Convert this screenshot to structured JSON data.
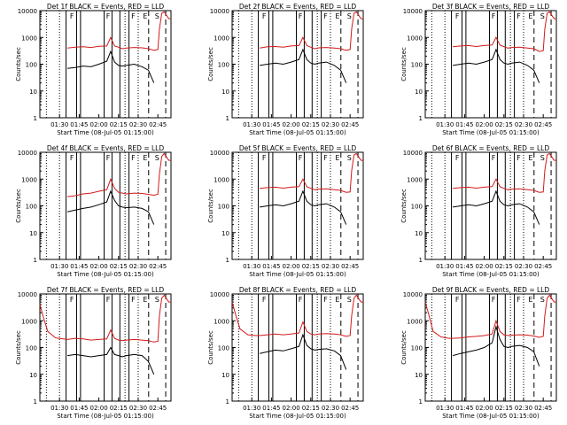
{
  "figure": {
    "background": "#ffffff",
    "colors": {
      "events": "#000000",
      "lld": "#d11a1a",
      "axis": "#000000"
    },
    "xtick_labels": [
      "01:30",
      "01:45",
      "02:00",
      "02:15",
      "02:30",
      "02:45"
    ],
    "ytick_labels": [
      "1",
      "10",
      "100",
      "1000",
      "10000"
    ],
    "ylabel": "Counts/sec",
    "xlabel": "Start Time (08-Jul-05 01:15:00)",
    "markers": {
      "dotted": [
        1.333,
        1.5,
        2.333,
        2.5
      ],
      "solid": [
        1.583,
        1.717,
        1.767,
        2.067,
        2.167,
        2.267,
        2.383
      ],
      "dashed": [
        2.633,
        2.85
      ]
    },
    "saa_letters": [
      {
        "text": "F",
        "t": 1.62
      },
      {
        "text": "F",
        "t": 2.08
      },
      {
        "text": "F",
        "t": 2.4
      },
      {
        "text": "E",
        "t": 2.55
      },
      {
        "text": "S",
        "t": 2.7
      }
    ]
  },
  "chart_data": [
    {
      "type": "line",
      "title": "Det 1f BLACK = Events, RED = LLD",
      "xlabel": "Start Time (08-Jul-05 01:15:00)",
      "ylabel": "Counts/sec",
      "x_unit": "hours after 01:15:00",
      "xlim": [
        0,
        1.667
      ],
      "ylim": [
        1,
        10000
      ],
      "yscale": "log",
      "series": [
        {
          "x": [
            0.35,
            0.45,
            0.55,
            0.65,
            0.75,
            0.85,
            0.9,
            0.95,
            1.0,
            1.05,
            1.1,
            1.2,
            1.3,
            1.38,
            1.45,
            1.5,
            1.52,
            1.55,
            1.58,
            1.62,
            1.64,
            1.667
          ],
          "y": [
            400,
            430,
            450,
            420,
            470,
            480,
            1000,
            480,
            430,
            380,
            400,
            420,
            410,
            380,
            330,
            350,
            2000,
            8000,
            9000,
            6000,
            5000,
            5000
          ]
        },
        {
          "x": [
            0.35,
            0.45,
            0.55,
            0.65,
            0.75,
            0.85,
            0.9,
            0.95,
            1.0,
            1.05,
            1.1,
            1.2,
            1.3,
            1.38,
            1.45
          ],
          "y": [
            70,
            75,
            85,
            80,
            100,
            130,
            300,
            120,
            90,
            85,
            90,
            100,
            80,
            60,
            20
          ]
        }
      ]
    },
    {
      "type": "line",
      "title": "Det 2f BLACK = Events, RED = LLD",
      "xlabel": "Start Time (08-Jul-05 01:15:00)",
      "ylabel": "Counts/sec",
      "x_unit": "hours after 01:15:00",
      "xlim": [
        0,
        1.667
      ],
      "ylim": [
        1,
        10000
      ],
      "yscale": "log",
      "series": [
        {
          "x": [
            0.35,
            0.45,
            0.55,
            0.65,
            0.75,
            0.85,
            0.9,
            0.95,
            1.0,
            1.05,
            1.1,
            1.2,
            1.3,
            1.38,
            1.45,
            1.5,
            1.52,
            1.55,
            1.58,
            1.62,
            1.64,
            1.667
          ],
          "y": [
            400,
            450,
            460,
            430,
            480,
            500,
            1000,
            500,
            430,
            380,
            410,
            420,
            400,
            380,
            330,
            350,
            2000,
            8000,
            9000,
            6000,
            5000,
            5000
          ]
        },
        {
          "x": [
            0.35,
            0.45,
            0.55,
            0.65,
            0.75,
            0.85,
            0.9,
            0.95,
            1.0,
            1.05,
            1.1,
            1.2,
            1.3,
            1.38,
            1.45
          ],
          "y": [
            90,
            100,
            110,
            100,
            120,
            150,
            350,
            150,
            110,
            100,
            110,
            120,
            90,
            60,
            20
          ]
        }
      ]
    },
    {
      "type": "line",
      "title": "Det 3f BLACK = Events, RED = LLD",
      "xlabel": "Start Time (08-Jul-05 01:15:00)",
      "ylabel": "Counts/sec",
      "x_unit": "hours after 01:15:00",
      "xlim": [
        0,
        1.667
      ],
      "ylim": [
        1,
        10000
      ],
      "yscale": "log",
      "series": [
        {
          "x": [
            0.35,
            0.45,
            0.55,
            0.65,
            0.75,
            0.85,
            0.9,
            0.95,
            1.0,
            1.05,
            1.1,
            1.2,
            1.3,
            1.38,
            1.45,
            1.5,
            1.52,
            1.55,
            1.58,
            1.62,
            1.64,
            1.667
          ],
          "y": [
            450,
            480,
            500,
            460,
            500,
            520,
            1000,
            520,
            450,
            400,
            420,
            430,
            400,
            380,
            300,
            320,
            2000,
            8000,
            9000,
            6000,
            5000,
            5000
          ]
        },
        {
          "x": [
            0.35,
            0.45,
            0.55,
            0.65,
            0.75,
            0.85,
            0.9,
            0.95,
            1.0,
            1.05,
            1.1,
            1.2,
            1.3,
            1.38,
            1.45
          ],
          "y": [
            90,
            100,
            110,
            100,
            120,
            150,
            350,
            150,
            110,
            100,
            110,
            120,
            90,
            60,
            20
          ]
        }
      ]
    },
    {
      "type": "line",
      "title": "Det 4f BLACK = Events, RED = LLD",
      "xlabel": "Start Time (08-Jul-05 01:15:00)",
      "ylabel": "Counts/sec",
      "x_unit": "hours after 01:15:00",
      "xlim": [
        0,
        1.667
      ],
      "ylim": [
        1,
        10000
      ],
      "yscale": "log",
      "series": [
        {
          "x": [
            0.35,
            0.45,
            0.55,
            0.65,
            0.75,
            0.85,
            0.9,
            0.95,
            1.0,
            1.05,
            1.1,
            1.2,
            1.3,
            1.38,
            1.45,
            1.5,
            1.52,
            1.55,
            1.58,
            1.62,
            1.64,
            1.667
          ],
          "y": [
            220,
            240,
            280,
            300,
            350,
            400,
            1000,
            450,
            320,
            300,
            280,
            300,
            290,
            270,
            250,
            270,
            1500,
            7000,
            9000,
            6000,
            5000,
            5000
          ]
        },
        {
          "x": [
            0.35,
            0.45,
            0.55,
            0.65,
            0.75,
            0.85,
            0.9,
            0.95,
            1.0,
            1.05,
            1.1,
            1.2,
            1.3,
            1.38,
            1.45
          ],
          "y": [
            60,
            70,
            80,
            90,
            110,
            140,
            350,
            160,
            100,
            90,
            85,
            90,
            80,
            60,
            20
          ]
        }
      ]
    },
    {
      "type": "line",
      "title": "Det 5f BLACK = Events, RED = LLD",
      "xlabel": "Start Time (08-Jul-05 01:15:00)",
      "ylabel": "Counts/sec",
      "x_unit": "hours after 01:15:00",
      "xlim": [
        0,
        1.667
      ],
      "ylim": [
        1,
        10000
      ],
      "yscale": "log",
      "series": [
        {
          "x": [
            0.35,
            0.45,
            0.55,
            0.65,
            0.75,
            0.85,
            0.9,
            0.95,
            1.0,
            1.05,
            1.1,
            1.2,
            1.3,
            1.38,
            1.45,
            1.5,
            1.52,
            1.55,
            1.58,
            1.62,
            1.64,
            1.667
          ],
          "y": [
            450,
            480,
            500,
            460,
            500,
            520,
            1000,
            520,
            450,
            400,
            420,
            430,
            400,
            380,
            320,
            330,
            2000,
            8000,
            9000,
            6000,
            5000,
            5000
          ]
        },
        {
          "x": [
            0.35,
            0.45,
            0.55,
            0.65,
            0.75,
            0.85,
            0.9,
            0.95,
            1.0,
            1.05,
            1.1,
            1.2,
            1.3,
            1.38,
            1.45
          ],
          "y": [
            90,
            100,
            110,
            100,
            120,
            150,
            350,
            150,
            110,
            100,
            110,
            120,
            90,
            60,
            20
          ]
        }
      ]
    },
    {
      "type": "line",
      "title": "Det 6f BLACK = Events, RED = LLD",
      "xlabel": "Start Time (08-Jul-05 01:15:00)",
      "ylabel": "Counts/sec",
      "x_unit": "hours after 01:15:00",
      "xlim": [
        0,
        1.667
      ],
      "ylim": [
        1,
        10000
      ],
      "yscale": "log",
      "series": [
        {
          "x": [
            0.35,
            0.45,
            0.55,
            0.65,
            0.75,
            0.85,
            0.9,
            0.95,
            1.0,
            1.05,
            1.1,
            1.2,
            1.3,
            1.38,
            1.45,
            1.5,
            1.52,
            1.55,
            1.58,
            1.62,
            1.64,
            1.667
          ],
          "y": [
            450,
            480,
            500,
            460,
            500,
            520,
            1000,
            520,
            450,
            400,
            420,
            430,
            400,
            380,
            320,
            330,
            2000,
            8000,
            9000,
            6000,
            5000,
            5000
          ]
        },
        {
          "x": [
            0.35,
            0.45,
            0.55,
            0.65,
            0.75,
            0.85,
            0.9,
            0.95,
            1.0,
            1.05,
            1.1,
            1.2,
            1.3,
            1.38,
            1.45
          ],
          "y": [
            90,
            100,
            110,
            100,
            120,
            150,
            350,
            150,
            110,
            100,
            110,
            120,
            90,
            60,
            20
          ]
        }
      ]
    },
    {
      "type": "line",
      "title": "Det 7f BLACK = Events, RED = LLD",
      "xlabel": "Start Time (08-Jul-05 01:15:00)",
      "ylabel": "Counts/sec",
      "x_unit": "hours after 01:15:00",
      "xlim": [
        0,
        1.667
      ],
      "ylim": [
        1,
        10000
      ],
      "yscale": "log",
      "series": [
        {
          "x": [
            0.0,
            0.05,
            0.1,
            0.2,
            0.3,
            0.35,
            0.45,
            0.55,
            0.65,
            0.75,
            0.85,
            0.9,
            0.95,
            1.0,
            1.05,
            1.1,
            1.2,
            1.3,
            1.38,
            1.45,
            1.5,
            1.52,
            1.55,
            1.58,
            1.62,
            1.64,
            1.667
          ],
          "y": [
            4000,
            1200,
            400,
            230,
            210,
            200,
            220,
            210,
            190,
            200,
            210,
            450,
            220,
            190,
            180,
            190,
            200,
            190,
            180,
            160,
            170,
            1500,
            7000,
            9000,
            6000,
            5000,
            5000
          ]
        },
        {
          "x": [
            0.35,
            0.45,
            0.55,
            0.65,
            0.75,
            0.85,
            0.9,
            0.95,
            1.0,
            1.05,
            1.1,
            1.2,
            1.3,
            1.38,
            1.45
          ],
          "y": [
            50,
            55,
            50,
            45,
            50,
            55,
            100,
            55,
            50,
            45,
            50,
            55,
            50,
            30,
            10
          ]
        }
      ]
    },
    {
      "type": "line",
      "title": "Det 8f BLACK = Events, RED = LLD",
      "xlabel": "Start Time (08-Jul-05 01:15:00)",
      "ylabel": "Counts/sec",
      "x_unit": "hours after 01:15:00",
      "xlim": [
        0,
        1.667
      ],
      "ylim": [
        1,
        10000
      ],
      "yscale": "log",
      "series": [
        {
          "x": [
            0.0,
            0.05,
            0.1,
            0.2,
            0.3,
            0.35,
            0.45,
            0.55,
            0.65,
            0.75,
            0.85,
            0.9,
            0.95,
            1.0,
            1.05,
            1.1,
            1.2,
            1.3,
            1.38,
            1.45,
            1.5,
            1.52,
            1.55,
            1.58,
            1.62,
            1.64,
            1.667
          ],
          "y": [
            5000,
            1500,
            500,
            300,
            280,
            280,
            300,
            320,
            300,
            320,
            350,
            900,
            400,
            320,
            300,
            320,
            330,
            320,
            300,
            260,
            280,
            1500,
            7000,
            9000,
            6000,
            5000,
            5000
          ]
        },
        {
          "x": [
            0.35,
            0.45,
            0.55,
            0.65,
            0.75,
            0.85,
            0.9,
            0.95,
            1.0,
            1.05,
            1.1,
            1.2,
            1.3,
            1.38,
            1.45
          ],
          "y": [
            60,
            70,
            80,
            75,
            90,
            110,
            300,
            120,
            90,
            80,
            85,
            90,
            75,
            50,
            15
          ]
        }
      ]
    },
    {
      "type": "line",
      "title": "Det 9f BLACK = Events, RED = LLD",
      "xlabel": "Start Time (08-Jul-05 01:15:00)",
      "ylabel": "Counts/sec",
      "x_unit": "hours after 01:15:00",
      "xlim": [
        0,
        1.667
      ],
      "ylim": [
        1,
        10000
      ],
      "yscale": "log",
      "series": [
        {
          "x": [
            0.0,
            0.05,
            0.1,
            0.2,
            0.3,
            0.35,
            0.45,
            0.55,
            0.65,
            0.75,
            0.85,
            0.9,
            0.95,
            1.0,
            1.05,
            1.1,
            1.2,
            1.3,
            1.38,
            1.45,
            1.5,
            1.52,
            1.55,
            1.58,
            1.62,
            1.64,
            1.667
          ],
          "y": [
            5000,
            1500,
            400,
            250,
            220,
            220,
            230,
            250,
            260,
            280,
            320,
            1000,
            400,
            300,
            280,
            290,
            300,
            290,
            270,
            240,
            260,
            1500,
            7000,
            9000,
            6000,
            5000,
            5000
          ]
        },
        {
          "x": [
            0.35,
            0.45,
            0.55,
            0.65,
            0.75,
            0.85,
            0.9,
            0.95,
            1.0,
            1.05,
            1.1,
            1.2,
            1.3,
            1.38,
            1.45
          ],
          "y": [
            50,
            60,
            70,
            80,
            100,
            150,
            600,
            200,
            110,
            100,
            110,
            120,
            100,
            70,
            20
          ]
        }
      ]
    }
  ]
}
